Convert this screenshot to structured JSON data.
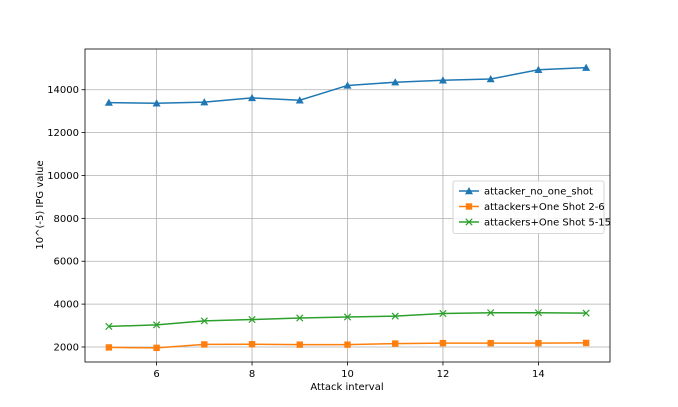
{
  "chart_data": {
    "type": "line",
    "title": "",
    "xlabel": "Attack interval",
    "ylabel": "10^(-5) IPG value",
    "x": [
      5,
      6,
      7,
      8,
      9,
      10,
      11,
      12,
      13,
      14,
      15
    ],
    "xlim": [
      4.5,
      15.5
    ],
    "ylim": [
      1300,
      15900
    ],
    "xticks": [
      6,
      8,
      10,
      12,
      14
    ],
    "yticks": [
      2000,
      4000,
      6000,
      8000,
      10000,
      12000,
      14000
    ],
    "grid": true,
    "legend_position": "center-right",
    "series": [
      {
        "name": "attacker_no_one_shot",
        "color": "#1f77b4",
        "marker": "triangle",
        "values": [
          13400,
          13370,
          13420,
          13620,
          13510,
          14200,
          14350,
          14440,
          14500,
          14930,
          15030
        ]
      },
      {
        "name": "attackers+One Shot 2-6",
        "color": "#ff7f0e",
        "marker": "square",
        "values": [
          1980,
          1960,
          2120,
          2130,
          2110,
          2110,
          2160,
          2180,
          2180,
          2180,
          2190
        ]
      },
      {
        "name": "attackers+One Shot 5-15",
        "color": "#2ca02c",
        "marker": "x",
        "values": [
          2960,
          3030,
          3220,
          3280,
          3350,
          3400,
          3440,
          3560,
          3600,
          3600,
          3580
        ]
      }
    ]
  }
}
